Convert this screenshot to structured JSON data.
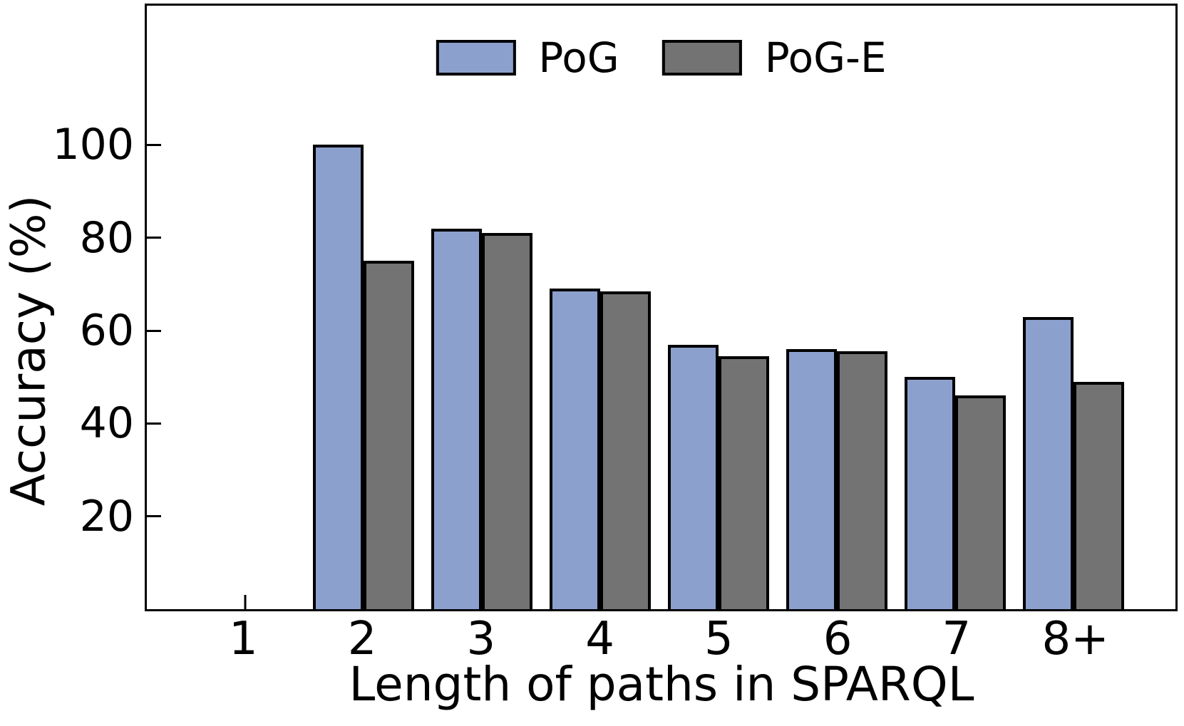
{
  "chart_data": {
    "type": "bar",
    "title": "",
    "xlabel": "Length of paths in SPARQL",
    "ylabel": "Accuracy (%)",
    "categories": [
      "1",
      "2",
      "3",
      "4",
      "5",
      "6",
      "7",
      "8+"
    ],
    "series": [
      {
        "name": "PoG",
        "color": "#8CA0CE",
        "values": [
          0,
          100,
          82,
          69,
          57,
          56,
          50,
          63
        ]
      },
      {
        "name": "PoG-E",
        "color": "#737373",
        "values": [
          0,
          75,
          81,
          68.5,
          54.5,
          55.5,
          46,
          49
        ]
      }
    ],
    "yticks": [
      20,
      40,
      60,
      80,
      100
    ],
    "ylim": [
      0,
      130
    ],
    "grid": false,
    "legend_position": "top-center",
    "bar_edge_color": "#000000",
    "spine_color": "#000000"
  }
}
